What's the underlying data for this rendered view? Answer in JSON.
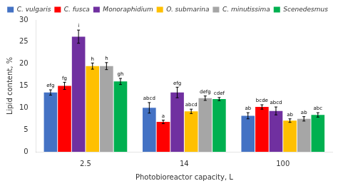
{
  "chart_data": {
    "type": "bar",
    "categories": [
      "2.5",
      "14",
      "100"
    ],
    "series": [
      {
        "name": "C. vulgaris",
        "color": "#4472c4",
        "values": [
          13.5,
          10.0,
          8.2
        ],
        "errors": [
          0.6,
          1.2,
          0.7
        ],
        "annotations": [
          "efg",
          "abcd",
          "ab"
        ]
      },
      {
        "name": "C. fusca",
        "color": "#ff0000",
        "values": [
          15.0,
          6.8,
          10.2
        ],
        "errors": [
          0.8,
          0.4,
          0.5
        ],
        "annotations": [
          "fg",
          "a",
          "bcde"
        ]
      },
      {
        "name": "Monoraphidium",
        "color": "#7030a0",
        "values": [
          26.2,
          13.5,
          9.3
        ],
        "errors": [
          1.5,
          1.2,
          0.9
        ],
        "annotations": [
          "i",
          "efg",
          "abcd"
        ]
      },
      {
        "name": "O. submarina",
        "color": "#ffc000",
        "values": [
          19.5,
          9.2,
          7.1
        ],
        "errors": [
          0.7,
          0.5,
          0.4
        ],
        "annotations": [
          "h",
          "abcd",
          "ab"
        ]
      },
      {
        "name": "C. minutissima",
        "color": "#a6a6a6",
        "values": [
          19.5,
          12.2,
          7.5
        ],
        "errors": [
          0.8,
          0.5,
          0.5
        ],
        "annotations": [
          "h",
          "defg",
          "ab"
        ]
      },
      {
        "name": "Scenedesmus",
        "color": "#00b050",
        "values": [
          16.0,
          12.0,
          8.4
        ],
        "errors": [
          0.7,
          0.35,
          0.5
        ],
        "annotations": [
          "gh",
          "cdef",
          "abc"
        ]
      }
    ],
    "xlabel": "Photobioreactor capacity, L",
    "ylabel": "Lipid content, %",
    "ylim": [
      0,
      30
    ],
    "yticks": [
      0,
      5,
      10,
      15,
      20,
      25,
      30
    ],
    "grid": false,
    "legend": "top"
  }
}
